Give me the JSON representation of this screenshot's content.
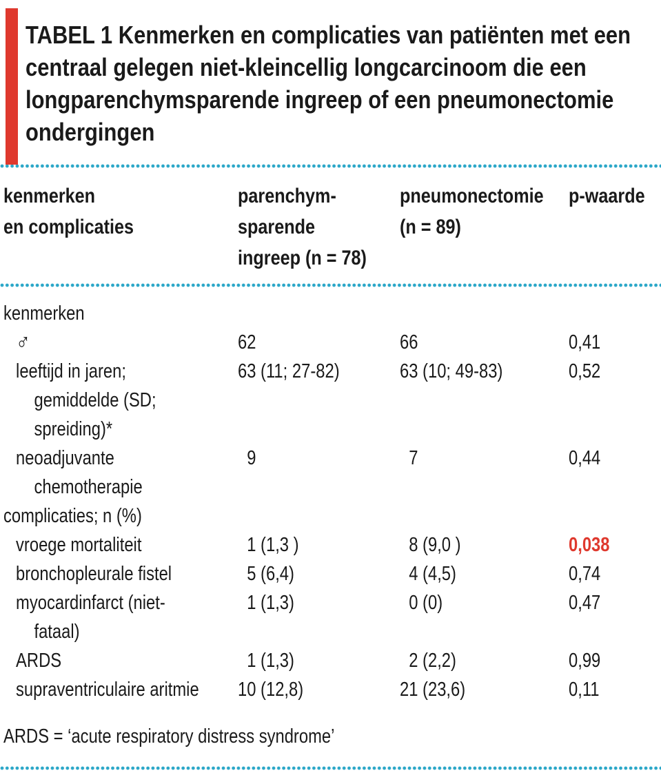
{
  "colors": {
    "accent_red": "#df392e",
    "dot_teal": "#2ba7c8",
    "text": "#1a1a1a"
  },
  "title": {
    "tag": "TABEL 1",
    "line1_rest": " Kenmerken en complicaties van patiënten met een",
    "line2": "centraal gelegen niet-kleincellig longcarcinoom die een",
    "line3": "longparenchymsparende ingreep of een pneumonectomie",
    "line4": "ondergingen"
  },
  "table": {
    "col_headers": {
      "characteristics": "kenmerken\nen complicaties",
      "parenchym_sparing": "parenchym-\nsparende\ningreep (n = 78)",
      "pneumonectomy": "pneumonectomie\n(n = 89)",
      "p_value": "p-waarde"
    },
    "rows": [
      {
        "type": "section",
        "label": "kenmerken"
      },
      {
        "type": "data",
        "label": "♂",
        "parenchym": "62",
        "pneumonectomie": "66",
        "p": "0,41"
      },
      {
        "type": "data",
        "label": "leeftijd in jaren;\n    gemiddelde (SD;\n    spreiding)*",
        "parenchym": "63 (11; 27-82)",
        "pneumonectomie": "63 (10; 49-83)",
        "p": "0,52"
      },
      {
        "type": "data",
        "label": "neoadjuvante\n    chemotherapie",
        "parenchym": "  9",
        "pneumonectomie": "  7",
        "p": "0,44"
      },
      {
        "type": "section",
        "label": "complicaties; n (%)"
      },
      {
        "type": "data",
        "label": "vroege mortaliteit",
        "parenchym": "  1 (1,3 )",
        "pneumonectomie": "  8 (9,0 )",
        "p": "0,038",
        "significant": true
      },
      {
        "type": "data",
        "label": "bronchopleurale fistel",
        "parenchym": "  5 (6,4)",
        "pneumonectomie": "  4 (4,5)",
        "p": "0,74"
      },
      {
        "type": "data",
        "label": "myocardinfarct (niet-\n    fataal)",
        "parenchym": "  1 (1,3)",
        "pneumonectomie": "  0 (0)",
        "p": "0,47"
      },
      {
        "type": "data",
        "label": "ARDS",
        "parenchym": "  1 (1,3)",
        "pneumonectomie": "  2 (2,2)",
        "p": "0,99"
      },
      {
        "type": "data",
        "label": "supraventriculaire aritmie",
        "parenchym": "10 (12,8)",
        "pneumonectomie": "21 (23,6)",
        "p": "0,11"
      }
    ]
  },
  "footnote": "ARDS = ‘acute respiratory distress syndrome’"
}
